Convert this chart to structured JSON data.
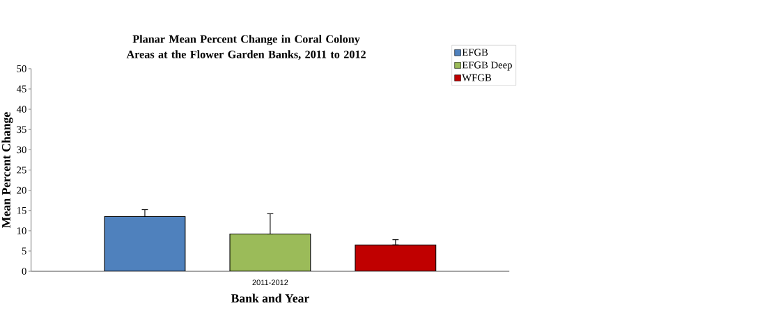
{
  "chart_data": {
    "type": "bar",
    "title": "Planar Mean Percent Change in Coral Colony Areas at the Flower Garden Banks,  2011 to 2012",
    "xlabel": "Bank and Year",
    "ylabel": "Mean Percent Change",
    "categories": [
      "2011-2012"
    ],
    "series": [
      {
        "name": "EFGB",
        "color": "#4f81bd",
        "values": [
          13.5
        ],
        "errors": [
          [
            13.5,
            15.2
          ]
        ]
      },
      {
        "name": "EFGB Deep",
        "color": "#9bbb59",
        "values": [
          9.2
        ],
        "errors": [
          [
            9.2,
            14.2
          ]
        ]
      },
      {
        "name": "WFGB",
        "color": "#c00000",
        "values": [
          6.5
        ],
        "errors": [
          [
            6.5,
            7.8
          ]
        ]
      }
    ],
    "ylim": [
      0,
      50
    ],
    "yticks": [
      0,
      5,
      10,
      15,
      20,
      25,
      30,
      35,
      40,
      45,
      50
    ],
    "grid": false,
    "legend": "top right"
  }
}
